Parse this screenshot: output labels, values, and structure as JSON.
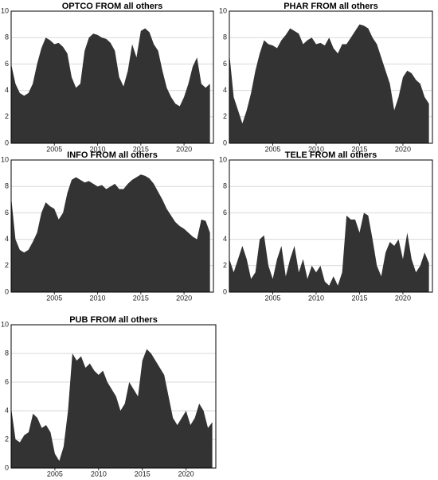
{
  "chart_data": [
    {
      "type": "area",
      "title": "OPTCO FROM all others",
      "color": "#333333",
      "grid": true,
      "x": [
        2000,
        2000.5,
        2001,
        2001.5,
        2002,
        2002.5,
        2003,
        2003.5,
        2004,
        2004.5,
        2005,
        2005.5,
        2006,
        2006.5,
        2007,
        2007.5,
        2008,
        2008.5,
        2009,
        2009.5,
        2010,
        2010.5,
        2011,
        2011.5,
        2012,
        2012.5,
        2013,
        2013.5,
        2014,
        2014.5,
        2015,
        2015.5,
        2016,
        2016.5,
        2017,
        2017.5,
        2018,
        2018.5,
        2019,
        2019.5,
        2020,
        2020.5,
        2021,
        2021.5,
        2022,
        2022.5,
        2023
      ],
      "values": [
        6,
        4.5,
        3.8,
        3.6,
        3.8,
        4.5,
        6,
        7.2,
        8,
        7.8,
        7.5,
        7.6,
        7.3,
        6.8,
        5,
        4.2,
        4.5,
        7,
        8,
        8.3,
        8.2,
        8,
        7.9,
        7.6,
        7,
        5,
        4.3,
        5.5,
        7.5,
        6.5,
        8.5,
        8.7,
        8.4,
        7.5,
        7,
        5.5,
        4.2,
        3.5,
        3,
        2.8,
        3.5,
        4.5,
        5.8,
        6.5,
        4.5,
        4.2,
        4.5
      ],
      "xlim": [
        2000,
        2023.4
      ],
      "xticks": [
        2005,
        2010,
        2015,
        2020
      ],
      "ylim": [
        0,
        10
      ],
      "yticks": [
        0,
        2,
        4,
        6,
        8,
        10
      ]
    },
    {
      "type": "area",
      "title": "PHAR FROM all others",
      "color": "#333333",
      "grid": true,
      "x": [
        2000,
        2000.5,
        2001,
        2001.5,
        2002,
        2002.5,
        2003,
        2003.5,
        2004,
        2004.5,
        2005,
        2005.5,
        2006,
        2006.5,
        2007,
        2007.5,
        2008,
        2008.5,
        2009,
        2009.5,
        2010,
        2010.5,
        2011,
        2011.5,
        2012,
        2012.5,
        2013,
        2013.5,
        2014,
        2014.5,
        2015,
        2015.5,
        2016,
        2016.5,
        2017,
        2017.5,
        2018,
        2018.5,
        2019,
        2019.5,
        2020,
        2020.5,
        2021,
        2021.5,
        2022,
        2022.5,
        2023
      ],
      "values": [
        6.8,
        3.5,
        2.5,
        1.5,
        2.5,
        3.8,
        5.5,
        6.8,
        7.8,
        7.5,
        7.4,
        7.2,
        7.8,
        8.2,
        8.7,
        8.5,
        8.3,
        7.5,
        7.8,
        8,
        7.5,
        7.6,
        7.4,
        8,
        7.2,
        6.8,
        7.5,
        7.5,
        8,
        8.5,
        9,
        8.9,
        8.7,
        8,
        7.5,
        6.5,
        5.5,
        4.5,
        2.5,
        3.5,
        5,
        5.5,
        5.3,
        4.8,
        4.5,
        3.5,
        3
      ],
      "xlim": [
        2000,
        2023.4
      ],
      "xticks": [
        2005,
        2010,
        2015,
        2020
      ],
      "ylim": [
        0,
        10
      ],
      "yticks": [
        0,
        2,
        4,
        6,
        8,
        10
      ]
    },
    {
      "type": "area",
      "title": "INFO FROM all others",
      "color": "#333333",
      "grid": true,
      "x": [
        2000,
        2000.5,
        2001,
        2001.5,
        2002,
        2002.5,
        2003,
        2003.5,
        2004,
        2004.5,
        2005,
        2005.5,
        2006,
        2006.5,
        2007,
        2007.5,
        2008,
        2008.5,
        2009,
        2009.5,
        2010,
        2010.5,
        2011,
        2011.5,
        2012,
        2012.5,
        2013,
        2013.5,
        2014,
        2014.5,
        2015,
        2015.5,
        2016,
        2016.5,
        2017,
        2017.5,
        2018,
        2018.5,
        2019,
        2019.5,
        2020,
        2020.5,
        2021,
        2021.5,
        2022,
        2022.5,
        2023
      ],
      "values": [
        7.2,
        4,
        3.2,
        3,
        3.2,
        3.8,
        4.5,
        6,
        6.8,
        6.5,
        6.3,
        5.5,
        6,
        7.5,
        8.5,
        8.7,
        8.5,
        8.3,
        8.4,
        8.2,
        8,
        8.1,
        7.8,
        8,
        8.2,
        7.8,
        7.8,
        8.2,
        8.5,
        8.7,
        8.9,
        8.8,
        8.6,
        8.2,
        7.6,
        7,
        6.3,
        5.8,
        5.3,
        5,
        4.8,
        4.5,
        4.2,
        4,
        5.5,
        5.4,
        4.5
      ],
      "xlim": [
        2000,
        2023.4
      ],
      "xticks": [
        2005,
        2010,
        2015,
        2020
      ],
      "ylim": [
        0,
        10
      ],
      "yticks": [
        0,
        2,
        4,
        6,
        8,
        10
      ]
    },
    {
      "type": "area",
      "title": "TELE FROM all others",
      "color": "#333333",
      "grid": true,
      "x": [
        2000,
        2000.5,
        2001,
        2001.5,
        2002,
        2002.5,
        2003,
        2003.5,
        2004,
        2004.5,
        2005,
        2005.5,
        2006,
        2006.5,
        2007,
        2007.5,
        2008,
        2008.5,
        2009,
        2009.5,
        2010,
        2010.5,
        2011,
        2011.5,
        2012,
        2012.5,
        2013,
        2013.5,
        2014,
        2014.5,
        2015,
        2015.5,
        2016,
        2016.5,
        2017,
        2017.5,
        2018,
        2018.5,
        2019,
        2019.5,
        2020,
        2020.5,
        2021,
        2021.5,
        2022,
        2022.5,
        2023
      ],
      "values": [
        2.5,
        1.5,
        2.5,
        3.5,
        2.5,
        1,
        1.5,
        4,
        4.3,
        2,
        1,
        2.5,
        3.5,
        1.2,
        2.5,
        3.5,
        1.5,
        2.5,
        1,
        2,
        1.5,
        2,
        0.8,
        0.5,
        1.2,
        0.5,
        1.5,
        5.8,
        5.5,
        5.5,
        4.5,
        6,
        5.8,
        4,
        2,
        1.2,
        3,
        3.8,
        3.5,
        4,
        2.5,
        4.5,
        2.5,
        1.5,
        2,
        3,
        2.2
      ],
      "xlim": [
        2000,
        2023.4
      ],
      "xticks": [
        2005,
        2010,
        2015,
        2020
      ],
      "ylim": [
        0,
        10
      ],
      "yticks": [
        0,
        2,
        4,
        6,
        8,
        10
      ]
    },
    {
      "type": "area",
      "title": "PUB FROM all others",
      "color": "#333333",
      "grid": true,
      "x": [
        2000,
        2000.5,
        2001,
        2001.5,
        2002,
        2002.5,
        2003,
        2003.5,
        2004,
        2004.5,
        2005,
        2005.5,
        2006,
        2006.5,
        2007,
        2007.5,
        2008,
        2008.5,
        2009,
        2009.5,
        2010,
        2010.5,
        2011,
        2011.5,
        2012,
        2012.5,
        2013,
        2013.5,
        2014,
        2014.5,
        2015,
        2015.5,
        2016,
        2016.5,
        2017,
        2017.5,
        2018,
        2018.5,
        2019,
        2019.5,
        2020,
        2020.5,
        2021,
        2021.5,
        2022,
        2022.5,
        2023
      ],
      "values": [
        4.2,
        2,
        1.8,
        2.3,
        2.5,
        3.8,
        3.5,
        2.8,
        3,
        2.5,
        1,
        0.5,
        1.5,
        4,
        8,
        7.5,
        7.8,
        7,
        7.3,
        6.8,
        6.5,
        6.8,
        6,
        5.5,
        5,
        4,
        4.5,
        6,
        5.5,
        5,
        7.5,
        8.3,
        8,
        7.5,
        7,
        6.5,
        5,
        3.5,
        3,
        3.5,
        4,
        3,
        3.5,
        4.5,
        4,
        2.8,
        3.2
      ],
      "xlim": [
        2000,
        2023.4
      ],
      "xticks": [
        2005,
        2010,
        2015,
        2020
      ],
      "ylim": [
        0,
        10
      ],
      "yticks": [
        0,
        2,
        4,
        6,
        8,
        10
      ]
    }
  ]
}
